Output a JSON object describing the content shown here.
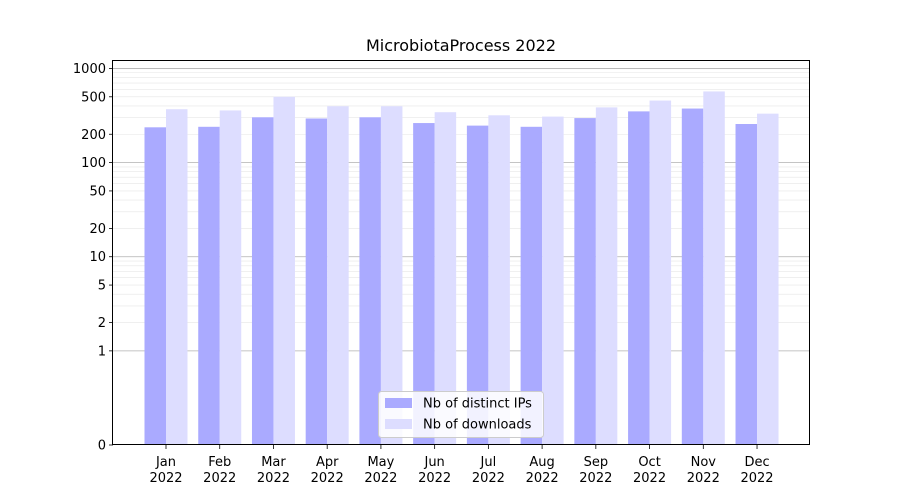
{
  "chart_data": {
    "type": "bar",
    "title": "MicrobiotaProcess 2022",
    "xlabel": "",
    "ylabel": "",
    "y_scale": "symlog",
    "ylim": [
      0,
      1200
    ],
    "y_ticks": [
      0,
      1,
      2,
      5,
      10,
      20,
      50,
      100,
      200,
      500,
      1000
    ],
    "y_tick_labels": [
      "0",
      "1",
      "2",
      "5",
      "10",
      "20",
      "50",
      "100",
      "200",
      "500",
      "1000"
    ],
    "grid": "horizontal",
    "legend_position": "bottom-center",
    "categories": [
      {
        "month": "Jan",
        "year": "2022"
      },
      {
        "month": "Feb",
        "year": "2022"
      },
      {
        "month": "Mar",
        "year": "2022"
      },
      {
        "month": "Apr",
        "year": "2022"
      },
      {
        "month": "May",
        "year": "2022"
      },
      {
        "month": "Jun",
        "year": "2022"
      },
      {
        "month": "Jul",
        "year": "2022"
      },
      {
        "month": "Aug",
        "year": "2022"
      },
      {
        "month": "Sep",
        "year": "2022"
      },
      {
        "month": "Oct",
        "year": "2022"
      },
      {
        "month": "Nov",
        "year": "2022"
      },
      {
        "month": "Dec",
        "year": "2022"
      }
    ],
    "series": [
      {
        "name": "Nb of distinct IPs",
        "color": "#aaaaff",
        "values": [
          237,
          240,
          303,
          294,
          303,
          263,
          247,
          240,
          297,
          350,
          375,
          257
        ]
      },
      {
        "name": "Nb of downloads",
        "color": "#ddddff",
        "values": [
          369,
          358,
          500,
          397,
          397,
          343,
          318,
          308,
          386,
          456,
          570,
          331
        ]
      }
    ]
  }
}
